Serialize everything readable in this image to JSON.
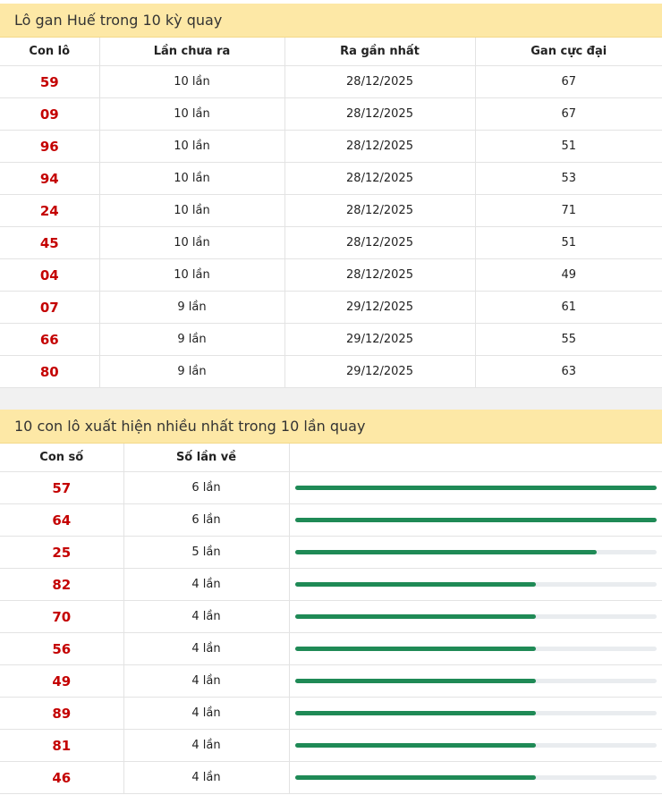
{
  "gan_table": {
    "title": "Lô gan Huế trong 10 kỳ quay",
    "headers": [
      "Con lô",
      "Lần chưa ra",
      "Ra gần nhất",
      "Gan cực đại"
    ],
    "rows": [
      [
        "59",
        "10 lần",
        "28/12/2025",
        "67"
      ],
      [
        "09",
        "10 lần",
        "28/12/2025",
        "67"
      ],
      [
        "96",
        "10 lần",
        "28/12/2025",
        "51"
      ],
      [
        "94",
        "10 lần",
        "28/12/2025",
        "53"
      ],
      [
        "24",
        "10 lần",
        "28/12/2025",
        "71"
      ],
      [
        "45",
        "10 lần",
        "28/12/2025",
        "51"
      ],
      [
        "04",
        "10 lần",
        "28/12/2025",
        "49"
      ],
      [
        "07",
        "9 lần",
        "29/12/2025",
        "61"
      ],
      [
        "66",
        "9 lần",
        "29/12/2025",
        "55"
      ],
      [
        "80",
        "9 lần",
        "29/12/2025",
        "63"
      ]
    ]
  },
  "frequency_table": {
    "title": "10 con lô xuất hiện nhiều nhất trong 10 lần quay",
    "headers": [
      "Con số",
      "Số lần về"
    ],
    "rows": [
      {
        "number": "57",
        "count": 6,
        "count_label": "6 lần"
      },
      {
        "number": "64",
        "count": 6,
        "count_label": "6 lần"
      },
      {
        "number": "25",
        "count": 5,
        "count_label": "5 lần"
      },
      {
        "number": "82",
        "count": 4,
        "count_label": "4 lần"
      },
      {
        "number": "70",
        "count": 4,
        "count_label": "4 lần"
      },
      {
        "number": "56",
        "count": 4,
        "count_label": "4 lần"
      },
      {
        "number": "49",
        "count": 4,
        "count_label": "4 lần"
      },
      {
        "number": "89",
        "count": 4,
        "count_label": "4 lần"
      },
      {
        "number": "81",
        "count": 4,
        "count_label": "4 lần"
      },
      {
        "number": "46",
        "count": 4,
        "count_label": "4 lần"
      }
    ]
  }
}
